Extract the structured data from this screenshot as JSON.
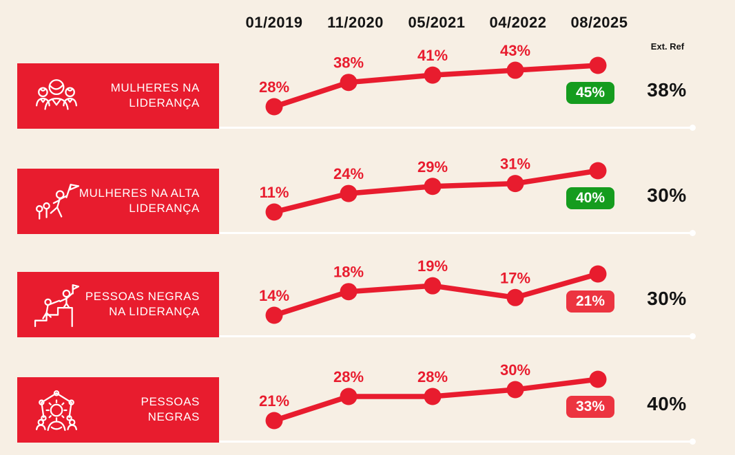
{
  "header": {
    "ext_ref_label": "Ext. Ref"
  },
  "colors": {
    "background": "#f7efe4",
    "line_red": "#e81c2e",
    "box_red": "#e81c2e",
    "badge_red": "#ec3440",
    "badge_green": "#159c1e",
    "text_dark": "#141414",
    "divider_white": "#ffffff"
  },
  "chart_data": {
    "type": "line",
    "categories": [
      "01/2019",
      "11/2020",
      "05/2021",
      "04/2022",
      "08/2025"
    ],
    "unit": "%",
    "legend": false,
    "grid": false,
    "xlabel": "",
    "ylabel": "",
    "series": [
      {
        "name": "Mulheres na Liderança",
        "label_lines": [
          "MULHERES NA",
          "LIDERANÇA"
        ],
        "icon": "women-group-icon",
        "values": [
          28,
          38,
          41,
          43,
          45
        ],
        "current_badge": {
          "value": "45%",
          "color": "green"
        },
        "ext_ref": "38%"
      },
      {
        "name": "Mulheres na Alta Liderança",
        "label_lines": [
          "MULHERES NA ALTA",
          "LIDERANÇA"
        ],
        "icon": "women-climbing-flag-icon",
        "values": [
          11,
          24,
          29,
          31,
          40
        ],
        "current_badge": {
          "value": "40%",
          "color": "green"
        },
        "ext_ref": "30%"
      },
      {
        "name": "Pessoas Negras na Liderança",
        "label_lines": [
          "PESSOAS NEGRAS",
          "NA LIDERANÇA"
        ],
        "icon": "podium-flag-icon",
        "values": [
          14,
          18,
          19,
          17,
          21
        ],
        "current_badge": {
          "value": "21%",
          "color": "red"
        },
        "ext_ref": "30%"
      },
      {
        "name": "Pessoas Negras",
        "label_lines": [
          "PESSOAS",
          "NEGRAS"
        ],
        "icon": "network-people-icon",
        "values": [
          21,
          28,
          28,
          30,
          33
        ],
        "current_badge": {
          "value": "33%",
          "color": "red"
        },
        "ext_ref": "40%"
      }
    ]
  }
}
